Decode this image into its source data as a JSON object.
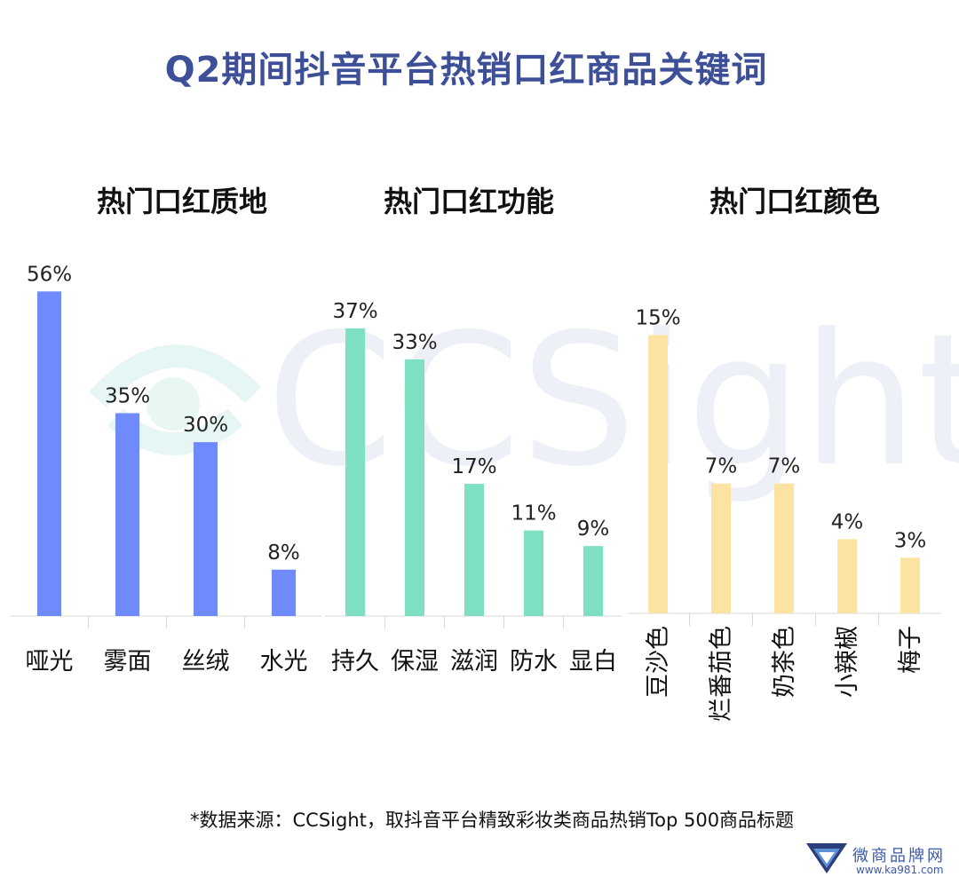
{
  "title": "Q2期间抖音平台热销口红商品关键词",
  "watermark": "CCSight",
  "source_note": "*数据来源：CCSight，取抖音平台精致彩妆类商品热销Top 500商品标题",
  "brand": {
    "name": "微商品牌网",
    "url": "www.ka981.com"
  },
  "chart_data": [
    {
      "type": "bar",
      "title": "热门口红质地",
      "categories": [
        "哑光",
        "雾面",
        "丝绒",
        "水光"
      ],
      "values": [
        56,
        35,
        30,
        8
      ],
      "value_labels": [
        "56%",
        "35%",
        "30%",
        "8%"
      ],
      "color": "#6f8bfb"
    },
    {
      "type": "bar",
      "title": "热门口红功能",
      "categories": [
        "持久",
        "保湿",
        "滋润",
        "防水",
        "显白"
      ],
      "values": [
        37,
        33,
        17,
        11,
        9
      ],
      "value_labels": [
        "37%",
        "33%",
        "17%",
        "11%",
        "9%"
      ],
      "color": "#7ee0c2"
    },
    {
      "type": "bar",
      "title": "热门口红颜色",
      "categories": [
        "豆沙色",
        "烂番茄色",
        "奶茶色",
        "小辣椒",
        "梅子"
      ],
      "values": [
        15,
        7,
        7,
        4,
        3
      ],
      "value_labels": [
        "15%",
        "7%",
        "7%",
        "4%",
        "3%"
      ],
      "color": "#fde3a2"
    }
  ]
}
